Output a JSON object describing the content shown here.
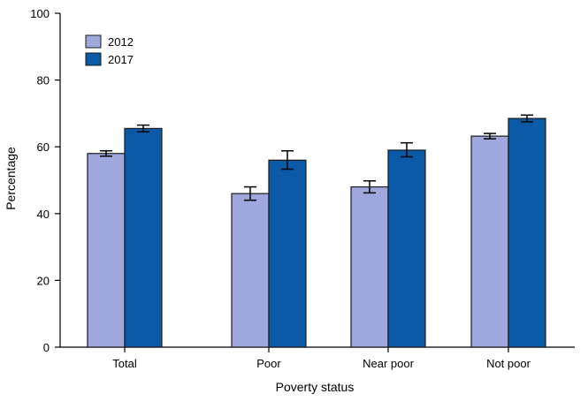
{
  "chart_data": {
    "type": "bar",
    "title": "",
    "xlabel": "Poverty status",
    "ylabel": "Percentage",
    "categories": [
      "Total",
      "Poor",
      "Near poor",
      "Not poor"
    ],
    "ylim": [
      0,
      100
    ],
    "yticks": [
      0,
      20,
      40,
      60,
      80,
      100
    ],
    "legend_position": "top-left",
    "series": [
      {
        "name": "2012",
        "color": "#9fa8dc",
        "values": [
          58.0,
          46.0,
          48.0,
          63.2
        ],
        "error_low": [
          57.2,
          44.0,
          46.2,
          62.4
        ],
        "error_high": [
          58.8,
          48.0,
          49.8,
          64.0
        ]
      },
      {
        "name": "2017",
        "color": "#0b5aa8",
        "values": [
          65.5,
          56.0,
          59.0,
          68.5
        ],
        "error_low": [
          64.5,
          53.3,
          57.0,
          67.5
        ],
        "error_high": [
          66.5,
          58.8,
          61.2,
          69.5
        ]
      }
    ]
  }
}
